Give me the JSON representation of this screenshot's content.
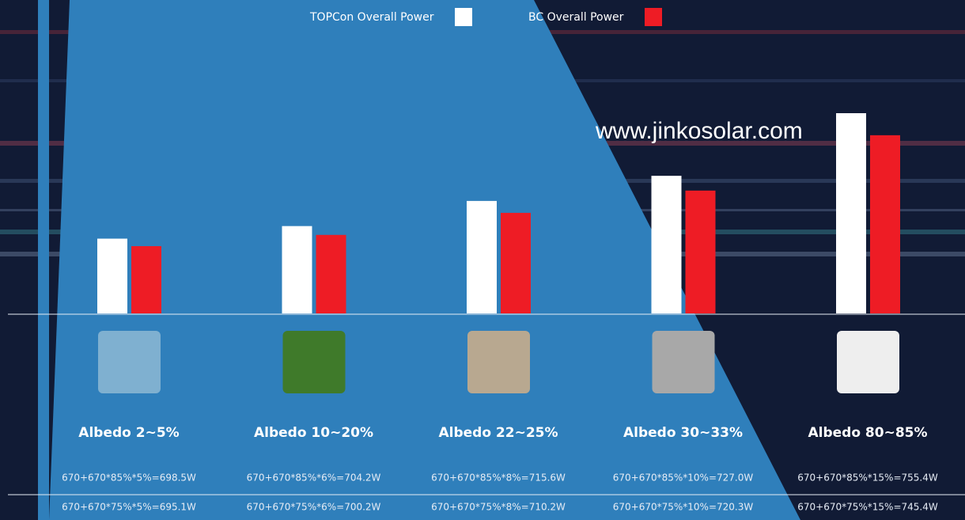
{
  "chart_data": {
    "type": "bar",
    "watermark": "www.jinkosolar.com",
    "categories": [
      "Albedo 2~5%",
      "Albedo 10~20%",
      "Albedo 22~25%",
      "Albedo 30~33%",
      "Albedo 80~85%"
    ],
    "series": [
      {
        "name": "TOPCon Overall Power",
        "color": "#ffffff",
        "values": [
          698.5,
          704.2,
          715.6,
          727.0,
          755.4
        ],
        "value_labels": [
          "670+670*85%*5%=698.5W",
          "670+670*85%*6%=704.2W",
          "670+670*85%*8%=715.6W",
          "670+670*85%*10%=727.0W",
          "670+670*85%*15%=755.4W"
        ]
      },
      {
        "name": "BC Overall Power",
        "color": "#ee1c25",
        "values": [
          695.1,
          700.2,
          710.2,
          720.3,
          745.4
        ],
        "value_labels": [
          "670+670*75%*5%=695.1W",
          "670+670*75%*6%=700.2W",
          "670+670*75%*8%=710.2W",
          "670+670*75%*10%=720.3W",
          "670+670*75%*15%=745.4W"
        ]
      }
    ]
  }
}
